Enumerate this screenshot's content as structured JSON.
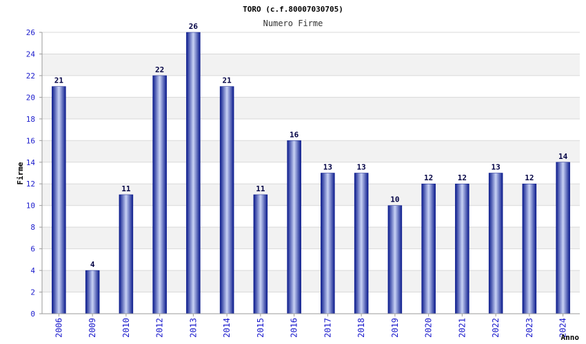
{
  "chart_data": {
    "type": "bar",
    "title": "TORO (c.f.80007030705)",
    "subtitle": "Numero Firme",
    "xlabel": "Anno",
    "ylabel": "Firme",
    "ylim": [
      0,
      26
    ],
    "yticks": [
      0,
      2,
      4,
      6,
      8,
      10,
      12,
      14,
      16,
      18,
      20,
      22,
      24,
      26
    ],
    "grid": true,
    "categories": [
      "2006",
      "2009",
      "2010",
      "2012",
      "2013",
      "2014",
      "2015",
      "2016",
      "2017",
      "2018",
      "2019",
      "2020",
      "2021",
      "2022",
      "2023",
      "2024"
    ],
    "values": [
      21,
      4,
      11,
      22,
      26,
      21,
      11,
      16,
      13,
      13,
      10,
      12,
      12,
      13,
      12,
      14
    ],
    "colors": {
      "bar_dark": "#0a1a8c",
      "bar_light": "#c8d2f5",
      "tick_label": "#1a1acc",
      "value_label": "#000044",
      "band": "#f2f2f2",
      "grid": "#d9d9d9",
      "axis": "#999999"
    }
  }
}
